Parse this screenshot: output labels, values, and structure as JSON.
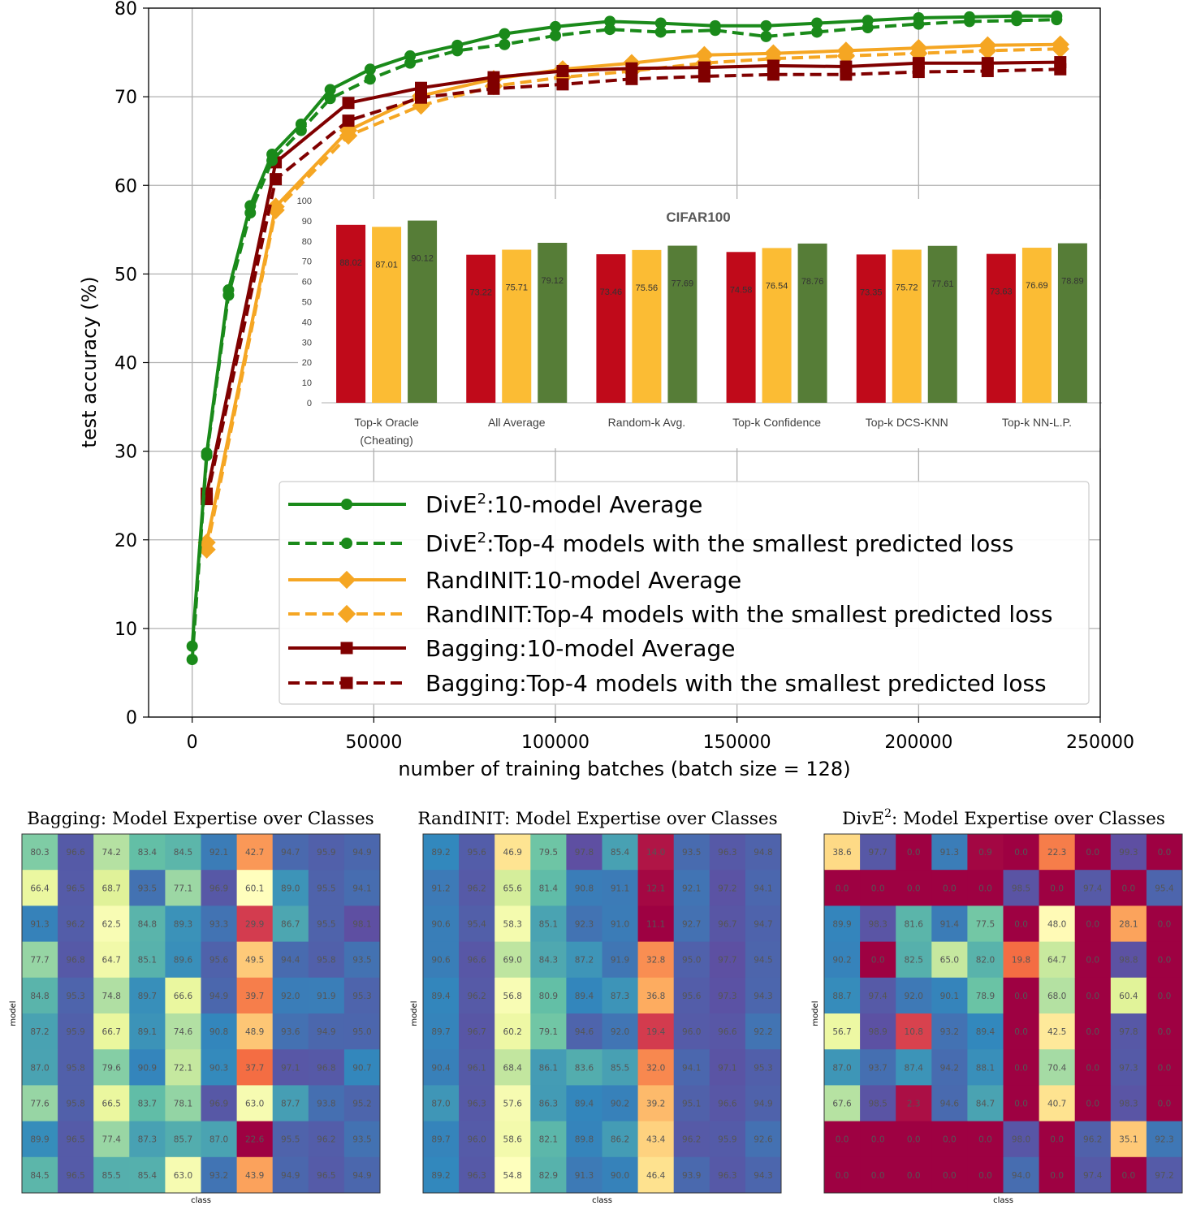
{
  "chart_data": [
    {
      "type": "line",
      "title": "",
      "xlabel": "number of training batches (batch size = 128)",
      "ylabel": "test accuracy (%)",
      "xlim": [
        -12000,
        250000
      ],
      "ylim": [
        0,
        80
      ],
      "grid": true,
      "xticks": [
        0,
        50000,
        100000,
        150000,
        200000,
        250000
      ],
      "xtick_labels": [
        "0",
        "50000",
        "100000",
        "150000",
        "200000",
        "250000"
      ],
      "yticks": [
        0,
        10,
        20,
        30,
        40,
        50,
        60,
        70,
        80
      ],
      "ytick_labels": [
        "0",
        "10",
        "20",
        "30",
        "40",
        "50",
        "60",
        "70",
        "80"
      ],
      "legend_position": "bottom-right",
      "series": [
        {
          "name": "DivE²:10-model Average",
          "legend_main": "DivE",
          "legend_sup": "2",
          "legend_rest": ":10-model Average",
          "color": "#1a8a1a",
          "dash": "solid",
          "marker": "circle",
          "x": [
            0,
            4000,
            10000,
            16000,
            22000,
            30000,
            38000,
            49000,
            60000,
            73000,
            86000,
            100000,
            115000,
            129000,
            144000,
            158000,
            172000,
            186000,
            200000,
            214000,
            227000,
            238000
          ],
          "y": [
            8.0,
            29.8,
            48.2,
            57.7,
            63.5,
            66.9,
            70.8,
            73.1,
            74.6,
            75.8,
            77.1,
            77.9,
            78.5,
            78.3,
            78.0,
            78.0,
            78.3,
            78.6,
            78.9,
            79.0,
            79.1,
            79.1
          ]
        },
        {
          "name": "DivE²:Top-4 models with the smallest predicted loss",
          "legend_main": "DivE",
          "legend_sup": "2",
          "legend_rest": ":Top-4 models with the smallest predicted loss",
          "color": "#1a8a1a",
          "dash": "dashed",
          "marker": "circle",
          "x": [
            0,
            4000,
            10000,
            16000,
            22000,
            30000,
            38000,
            49000,
            60000,
            73000,
            86000,
            100000,
            115000,
            129000,
            144000,
            158000,
            172000,
            186000,
            200000,
            214000,
            227000,
            238000
          ],
          "y": [
            6.5,
            29.5,
            47.6,
            56.9,
            62.8,
            66.2,
            69.8,
            72.0,
            73.8,
            75.2,
            75.9,
            76.9,
            77.6,
            77.3,
            77.5,
            76.8,
            77.3,
            77.8,
            78.2,
            78.5,
            78.6,
            78.7
          ]
        },
        {
          "name": "RandINIT:10-model Average",
          "legend_main": "RandINIT:10-model Average",
          "legend_sup": "",
          "legend_rest": "",
          "color": "#f5a623",
          "dash": "solid",
          "marker": "diamond",
          "x": [
            4000,
            23000,
            43000,
            63000,
            83000,
            102000,
            121000,
            141000,
            160000,
            180000,
            200000,
            219000,
            239000
          ],
          "y": [
            19.7,
            57.6,
            66.2,
            70.1,
            72.0,
            73.1,
            73.8,
            74.7,
            74.9,
            75.2,
            75.5,
            75.8,
            75.9
          ]
        },
        {
          "name": "RandINIT:Top-4 models with the smallest predicted loss",
          "legend_main": "RandINIT:Top-4 models with the smallest predicted loss",
          "legend_sup": "",
          "legend_rest": "",
          "color": "#f5a623",
          "dash": "dashed",
          "marker": "diamond",
          "x": [
            4000,
            23000,
            43000,
            63000,
            83000,
            102000,
            121000,
            141000,
            160000,
            180000,
            200000,
            219000,
            239000
          ],
          "y": [
            18.9,
            57.2,
            65.6,
            69.0,
            71.2,
            72.2,
            72.9,
            73.8,
            74.3,
            74.6,
            74.9,
            75.2,
            75.4
          ]
        },
        {
          "name": "Bagging:10-model Average",
          "legend_main": "Bagging:10-model Average",
          "legend_sup": "",
          "legend_rest": "",
          "color": "#800000",
          "dash": "solid",
          "marker": "square",
          "x": [
            4000,
            23000,
            43000,
            63000,
            83000,
            102000,
            121000,
            141000,
            160000,
            180000,
            200000,
            219000,
            239000
          ],
          "y": [
            25.2,
            62.6,
            69.3,
            71.0,
            72.2,
            72.9,
            73.2,
            73.3,
            73.5,
            73.4,
            73.8,
            73.8,
            73.9
          ]
        },
        {
          "name": "Bagging:Top-4 models with the smallest predicted loss",
          "legend_main": "Bagging:Top-4 models with the smallest predicted loss",
          "legend_sup": "",
          "legend_rest": "",
          "color": "#800000",
          "dash": "dashed",
          "marker": "square",
          "x": [
            4000,
            23000,
            43000,
            63000,
            83000,
            102000,
            121000,
            141000,
            160000,
            180000,
            200000,
            219000,
            239000
          ],
          "y": [
            24.6,
            60.7,
            67.3,
            69.9,
            70.9,
            71.4,
            72.0,
            72.3,
            72.5,
            72.5,
            72.8,
            72.9,
            73.1
          ]
        }
      ]
    },
    {
      "type": "bar",
      "title": "CIFAR100",
      "categories": [
        [
          "Top-k Oracle",
          "(Cheating)"
        ],
        [
          "All Average"
        ],
        [
          "Random-k Avg."
        ],
        [
          "Top-k Confidence"
        ],
        [
          "Top-k DCS-KNN"
        ],
        [
          "Top-k NN-L.P."
        ]
      ],
      "ylim": [
        0,
        100
      ],
      "yticks": [
        "0",
        "10",
        "20",
        "30",
        "40",
        "50",
        "60",
        "70",
        "80",
        "90",
        "100"
      ],
      "series": [
        {
          "name": "Bagging",
          "color": "#c00a1a",
          "values": [
            88.02,
            73.22,
            73.46,
            74.58,
            73.35,
            73.63
          ],
          "labels": [
            "88.02",
            "73.22",
            "73.46",
            "74.58",
            "73.35",
            "73.63"
          ]
        },
        {
          "name": "RandINIT",
          "color": "#fbbc34",
          "values": [
            87.01,
            75.71,
            75.56,
            76.54,
            75.72,
            76.69
          ],
          "labels": [
            "87.01",
            "75.71",
            "75.56",
            "76.54",
            "75.72",
            "76.69"
          ]
        },
        {
          "name": "DivE2",
          "color": "#567d37",
          "values": [
            90.12,
            79.12,
            77.69,
            78.76,
            77.61,
            78.89
          ],
          "labels": [
            "90.12",
            "79.12",
            "77.69",
            "78.76",
            "77.61",
            "78.89"
          ]
        }
      ]
    },
    {
      "type": "heatmap",
      "title": "Bagging: Model Expertise over Classes",
      "title_main": "Bagging: Model Expertise over Classes",
      "title_sup": "",
      "title_rest": "",
      "xlabel": "class",
      "ylabel": "model",
      "values": [
        [
          80.3,
          96.6,
          74.2,
          83.4,
          84.5,
          92.1,
          42.7,
          94.7,
          95.9,
          94.9
        ],
        [
          66.4,
          96.5,
          68.7,
          93.5,
          77.1,
          96.9,
          60.1,
          89.0,
          95.5,
          94.1
        ],
        [
          91.3,
          96.2,
          62.5,
          84.8,
          89.3,
          93.3,
          29.9,
          86.7,
          95.5,
          98.1
        ],
        [
          77.7,
          96.8,
          64.7,
          85.1,
          89.6,
          95.6,
          49.5,
          94.4,
          95.8,
          93.5
        ],
        [
          84.8,
          95.3,
          74.8,
          89.7,
          66.6,
          94.9,
          39.7,
          92.0,
          91.9,
          95.3
        ],
        [
          87.2,
          95.9,
          66.7,
          89.1,
          74.6,
          90.8,
          48.9,
          93.6,
          94.9,
          95.0
        ],
        [
          87.0,
          95.8,
          79.6,
          90.9,
          72.1,
          90.3,
          37.7,
          97.1,
          96.8,
          90.7
        ],
        [
          77.6,
          95.8,
          66.5,
          83.7,
          78.1,
          96.9,
          63.0,
          87.7,
          93.8,
          95.2
        ],
        [
          89.9,
          96.5,
          77.4,
          87.3,
          85.7,
          87.0,
          22.6,
          95.5,
          96.2,
          93.5
        ],
        [
          84.5,
          96.5,
          85.5,
          85.4,
          63.0,
          93.2,
          43.9,
          94.9,
          96.5,
          94.9
        ]
      ]
    },
    {
      "type": "heatmap",
      "title": "RandINIT: Model Expertise over Classes",
      "title_main": "RandINIT: Model Expertise over Classes",
      "title_sup": "",
      "title_rest": "",
      "xlabel": "class",
      "ylabel": "model",
      "values": [
        [
          89.2,
          95.6,
          46.9,
          79.5,
          97.8,
          85.4,
          14.0,
          93.5,
          96.3,
          94.8
        ],
        [
          91.2,
          96.2,
          65.6,
          81.4,
          90.8,
          91.1,
          12.1,
          92.1,
          97.2,
          94.1
        ],
        [
          90.6,
          95.4,
          58.3,
          85.1,
          92.3,
          91.0,
          11.1,
          92.7,
          96.7,
          94.7
        ],
        [
          90.6,
          96.6,
          69.0,
          84.3,
          87.2,
          91.9,
          32.8,
          95.0,
          97.7,
          94.5
        ],
        [
          89.4,
          96.2,
          56.8,
          80.9,
          89.4,
          87.3,
          36.8,
          95.6,
          97.3,
          94.3
        ],
        [
          89.7,
          96.7,
          60.2,
          79.1,
          94.6,
          92.0,
          19.4,
          96.0,
          96.6,
          92.2
        ],
        [
          90.4,
          96.1,
          68.4,
          86.1,
          83.6,
          85.5,
          32.0,
          94.1,
          97.1,
          95.3
        ],
        [
          87.0,
          96.3,
          57.6,
          86.3,
          89.4,
          90.2,
          39.2,
          95.1,
          96.6,
          94.9
        ],
        [
          89.7,
          96.0,
          58.6,
          82.1,
          89.8,
          86.2,
          43.4,
          96.2,
          95.9,
          92.6
        ],
        [
          89.2,
          96.3,
          54.8,
          82.9,
          91.3,
          90.0,
          46.4,
          93.9,
          96.3,
          94.3
        ]
      ]
    },
    {
      "type": "heatmap",
      "title": "DivE2: Model Expertise over Classes",
      "title_main": "DivE",
      "title_sup": "2",
      "title_rest": ": Model Expertise over Classes",
      "xlabel": "class",
      "ylabel": "model",
      "values": [
        [
          38.6,
          97.7,
          0.0,
          91.3,
          0.9,
          0.0,
          22.3,
          0.0,
          99.3,
          0.0
        ],
        [
          0.0,
          0.0,
          0.0,
          0.0,
          0.0,
          98.5,
          0.0,
          97.4,
          0.0,
          95.4
        ],
        [
          89.9,
          98.3,
          81.6,
          91.4,
          77.5,
          0.0,
          48.0,
          0.0,
          28.1,
          0.0
        ],
        [
          90.2,
          0.0,
          82.5,
          65.0,
          82.0,
          19.8,
          64.7,
          0.0,
          98.8,
          0.0
        ],
        [
          88.7,
          97.4,
          92.0,
          90.1,
          78.9,
          0.0,
          68.0,
          0.0,
          60.4,
          0.0
        ],
        [
          56.7,
          98.9,
          10.8,
          93.2,
          89.4,
          0.0,
          42.5,
          0.0,
          97.8,
          0.0
        ],
        [
          87.0,
          93.7,
          87.4,
          94.2,
          88.1,
          0.0,
          70.4,
          0.0,
          97.3,
          0.0
        ],
        [
          67.6,
          98.5,
          2.3,
          94.6,
          84.7,
          0.0,
          40.7,
          0.0,
          98.3,
          0.0
        ],
        [
          0.0,
          0.0,
          0.0,
          0.0,
          0.0,
          98.0,
          0.0,
          96.2,
          35.1,
          92.3
        ],
        [
          0.0,
          0.0,
          0.0,
          0.0,
          0.0,
          94.0,
          0.0,
          97.4,
          0.0,
          97.2
        ]
      ]
    }
  ]
}
